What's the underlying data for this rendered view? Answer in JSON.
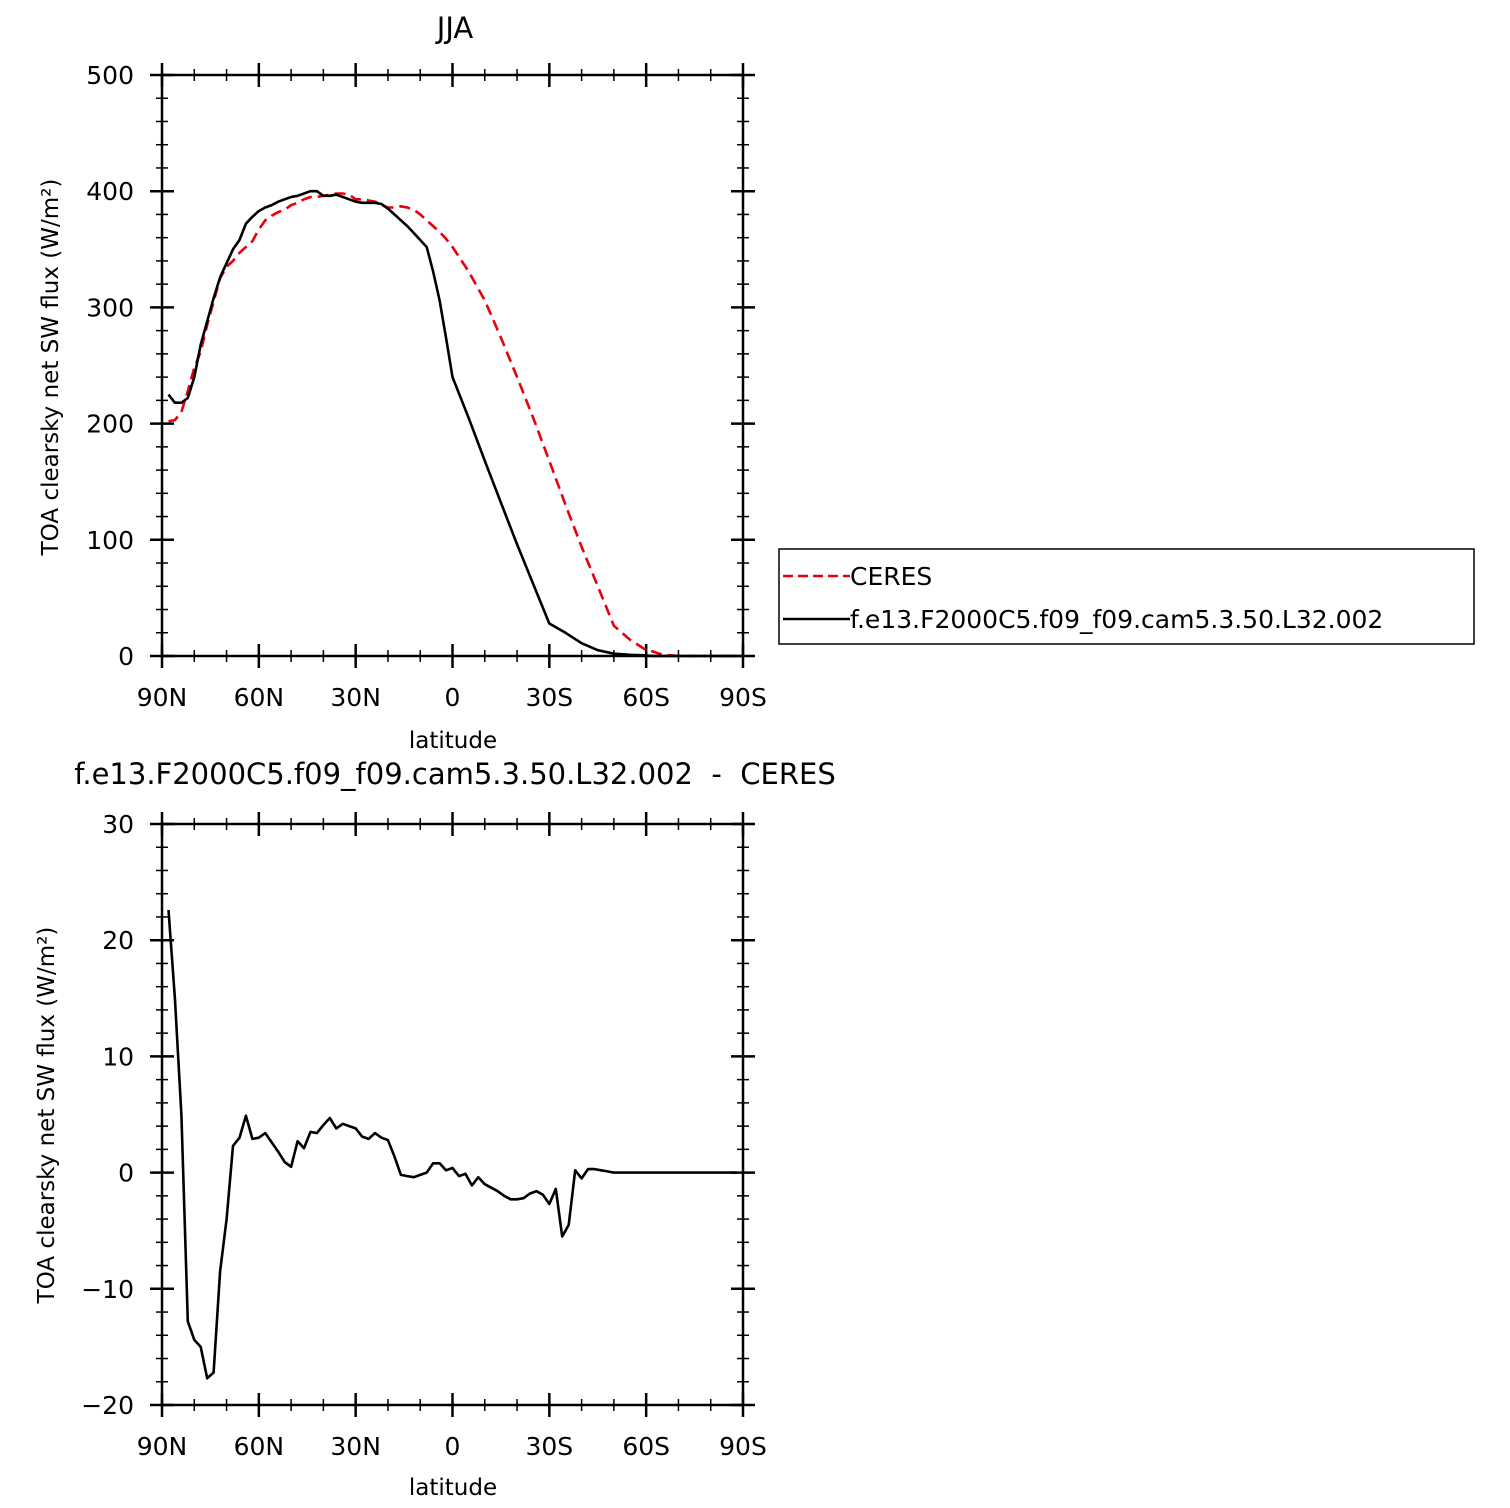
{
  "chart_data": [
    {
      "type": "line",
      "title": "JJA",
      "xlabel": "latitude",
      "ylabel": "TOA clearsky net SW flux (W/m²)",
      "xlim": [
        90,
        -90
      ],
      "ylim": [
        0,
        500
      ],
      "x_ticks": [
        "90N",
        "60N",
        "30N",
        "0",
        "30S",
        "60S",
        "90S"
      ],
      "y_ticks": [
        "0",
        "100",
        "200",
        "300",
        "400",
        "500"
      ],
      "grid": false,
      "legend_position": "right",
      "series": [
        {
          "name": "CERES",
          "color": "#e8000b",
          "style": "dashed",
          "x": [
            88,
            86,
            84,
            82,
            80,
            78,
            76,
            74,
            72,
            70,
            68,
            66,
            64,
            62,
            60,
            58,
            56,
            54,
            52,
            50,
            48,
            46,
            44,
            42,
            40,
            38,
            36,
            34,
            32,
            30,
            28,
            26,
            24,
            22,
            20,
            18,
            16,
            14,
            12,
            10,
            8,
            6,
            4,
            2,
            0,
            -5,
            -10,
            -15,
            -20,
            -25,
            -30,
            -35,
            -40,
            -45,
            -50,
            -55,
            -60,
            -62,
            -64,
            -66,
            -68,
            -70,
            -72,
            -75,
            -80,
            -85,
            -88
          ],
          "y": [
            202,
            203,
            210,
            228,
            248,
            262,
            285,
            305,
            325,
            335,
            340,
            347,
            352,
            357,
            367,
            375,
            379,
            382,
            384,
            388,
            390,
            393,
            395,
            395,
            396,
            397,
            398,
            398,
            397,
            393,
            393,
            392,
            391,
            388,
            386,
            386,
            387,
            386,
            384,
            380,
            375,
            370,
            365,
            359,
            352,
            331,
            306,
            274,
            240,
            205,
            168,
            130,
            94,
            60,
            26,
            14,
            5,
            4,
            2,
            1,
            0.5,
            0,
            0,
            0,
            0,
            0,
            0
          ]
        },
        {
          "name": "f.e13.F2000C5.f09_f09.cam5.3.50.L32.002",
          "color": "#000000",
          "style": "solid",
          "x": [
            88,
            86,
            84,
            82,
            80,
            78,
            76,
            74,
            72,
            70,
            68,
            66,
            64,
            62,
            60,
            58,
            56,
            54,
            52,
            50,
            48,
            46,
            44,
            42,
            40,
            38,
            36,
            34,
            32,
            30,
            28,
            26,
            24,
            22,
            20,
            18,
            16,
            14,
            12,
            10,
            8,
            6,
            4,
            2,
            0,
            -5,
            -10,
            -15,
            -20,
            -25,
            -30,
            -35,
            -40,
            -45,
            -50,
            -55,
            -60,
            -62,
            -64,
            -66,
            -68,
            -70,
            -72,
            -75,
            -80,
            -85,
            -88
          ],
          "y": [
            225,
            218,
            218,
            222,
            240,
            268,
            288,
            308,
            326,
            338,
            350,
            358,
            372,
            378,
            383,
            386,
            388,
            391,
            393,
            395,
            396,
            398,
            400,
            400,
            396,
            396,
            397,
            395,
            393,
            391,
            390,
            390,
            390,
            389,
            385,
            380,
            375,
            370,
            364,
            358,
            352,
            331,
            306,
            274,
            240,
            205,
            168,
            132,
            96,
            62,
            28,
            20,
            11,
            5,
            2,
            1,
            0.5,
            0,
            0,
            0,
            0,
            0,
            0,
            0,
            0,
            0,
            0
          ]
        }
      ]
    },
    {
      "type": "line",
      "title": "f.e13.F2000C5.f09_f09.cam5.3.50.L32.002  -  CERES",
      "xlabel": "latitude",
      "ylabel": "TOA clearsky net SW flux (W/m²)",
      "xlim": [
        90,
        -90
      ],
      "ylim": [
        -20,
        30
      ],
      "x_ticks": [
        "90N",
        "60N",
        "30N",
        "0",
        "30S",
        "60S",
        "90S"
      ],
      "y_ticks": [
        "−20",
        "−10",
        "0",
        "10",
        "20",
        "30"
      ],
      "grid": false,
      "series": [
        {
          "color": "#000000",
          "style": "solid",
          "x": [
            88,
            86,
            84,
            82,
            80,
            78,
            76,
            74,
            72,
            70,
            68,
            66,
            64,
            62,
            60,
            58,
            56,
            54,
            52,
            50,
            48,
            46,
            44,
            42,
            40,
            38,
            36,
            34,
            32,
            30,
            28,
            26,
            24,
            22,
            20,
            18,
            16,
            14,
            12,
            10,
            8,
            6,
            4,
            2,
            0,
            -2,
            -4,
            -6,
            -8,
            -10,
            -12,
            -14,
            -16,
            -18,
            -20,
            -22,
            -24,
            -26,
            -28,
            -30,
            -32,
            -34,
            -36,
            -38,
            -40,
            -42,
            -44,
            -46,
            -48,
            -50,
            -52,
            -54,
            -56,
            -58,
            -60,
            -62,
            -64,
            -66,
            -68,
            -70,
            -72,
            -74,
            -76,
            -78,
            -80,
            -82,
            -84,
            -86,
            -88
          ],
          "y": [
            22.6,
            15,
            5,
            -12.8,
            -14.4,
            -15,
            -17.7,
            -17.2,
            -8.5,
            -4,
            2.3,
            3,
            4.9,
            2.9,
            3,
            3.4,
            2.6,
            1.8,
            0.9,
            0.5,
            2.7,
            2.1,
            3.5,
            3.4,
            4.1,
            4.7,
            3.8,
            4.2,
            4,
            3.8,
            3.1,
            2.9,
            3.4,
            3,
            2.8,
            1.4,
            -0.2,
            -0.3,
            -0.4,
            -0.2,
            0,
            0.8,
            0.8,
            0.2,
            0.4,
            -0.3,
            -0.1,
            -1.1,
            -0.4,
            -1,
            -1.3,
            -1.6,
            -2,
            -2.3,
            -2.3,
            -2.2,
            -1.8,
            -1.6,
            -1.9,
            -2.7,
            -1.4,
            -5.5,
            -4.5,
            0.2,
            -0.5,
            0.3,
            0.3,
            0.2,
            0.1,
            0,
            0,
            0,
            0,
            0,
            0,
            0,
            0,
            0,
            0,
            0,
            0,
            0,
            0,
            0,
            0,
            0,
            0,
            0,
            0
          ]
        }
      ]
    }
  ]
}
